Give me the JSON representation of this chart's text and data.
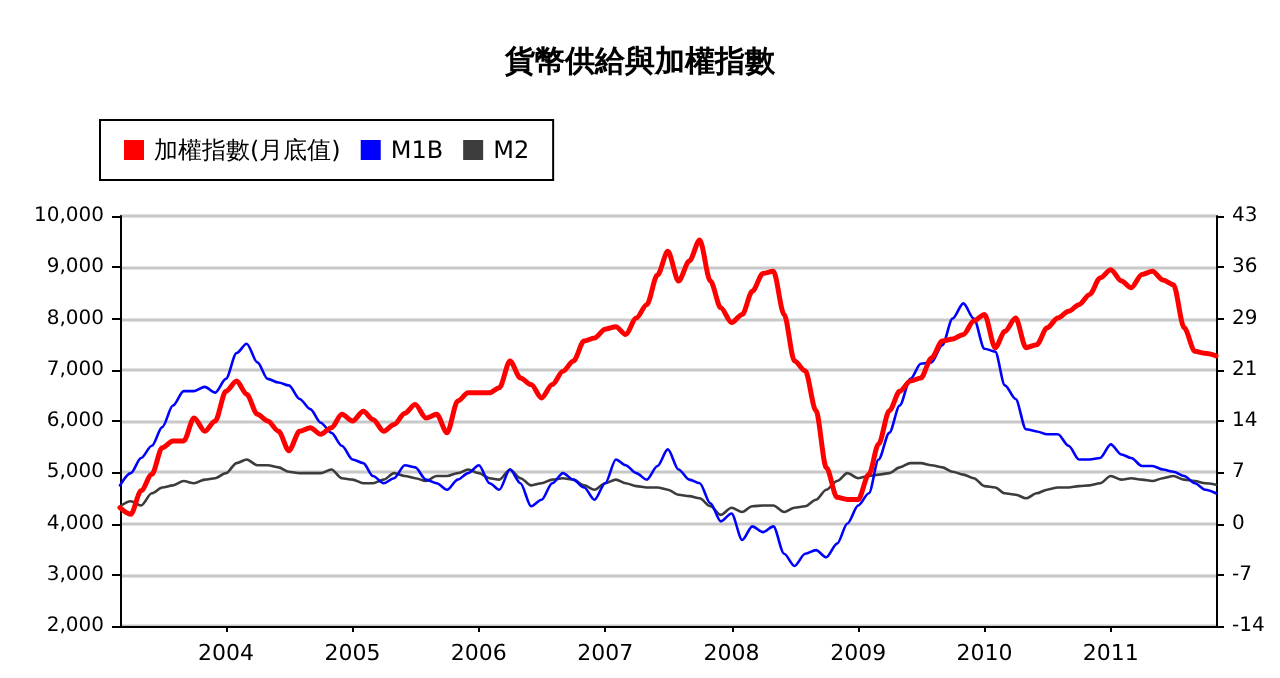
{
  "chart_data": {
    "type": "line",
    "title": "貨幣供給與加權指數",
    "legend": "top left",
    "grid": "y",
    "marker": "none",
    "line_style": "solid",
    "x": [
      "2003-03",
      "2003-04",
      "2003-05",
      "2003-06",
      "2003-07",
      "2003-08",
      "2003-09",
      "2003-10",
      "2003-11",
      "2003-12",
      "2004-01",
      "2004-02",
      "2004-03",
      "2004-04",
      "2004-05",
      "2004-06",
      "2004-07",
      "2004-08",
      "2004-09",
      "2004-10",
      "2004-11",
      "2004-12",
      "2005-01",
      "2005-02",
      "2005-03",
      "2005-04",
      "2005-05",
      "2005-06",
      "2005-07",
      "2005-08",
      "2005-09",
      "2005-10",
      "2005-11",
      "2005-12",
      "2006-01",
      "2006-02",
      "2006-03",
      "2006-04",
      "2006-05",
      "2006-06",
      "2006-07",
      "2006-08",
      "2006-09",
      "2006-10",
      "2006-11",
      "2006-12",
      "2007-01",
      "2007-02",
      "2007-03",
      "2007-04",
      "2007-05",
      "2007-06",
      "2007-07",
      "2007-08",
      "2007-09",
      "2007-10",
      "2007-11",
      "2007-12",
      "2008-01",
      "2008-02",
      "2008-03",
      "2008-04",
      "2008-05",
      "2008-06",
      "2008-07",
      "2008-08",
      "2008-09",
      "2008-10",
      "2008-11",
      "2008-12",
      "2009-01",
      "2009-02",
      "2009-03",
      "2009-04",
      "2009-05",
      "2009-06",
      "2009-07",
      "2009-08",
      "2009-09",
      "2009-10",
      "2009-11",
      "2009-12",
      "2010-01",
      "2010-02",
      "2010-03",
      "2010-04",
      "2010-05",
      "2010-06",
      "2010-07",
      "2010-08",
      "2010-09",
      "2010-10",
      "2010-11",
      "2010-12",
      "2011-01",
      "2011-02",
      "2011-03",
      "2011-04",
      "2011-05",
      "2011-06",
      "2011-07",
      "2011-08",
      "2011-09",
      "2011-10",
      "2011-11"
    ],
    "xlim": [
      "2003-03",
      "2011-11"
    ],
    "xticks": [
      {
        "value": "2004",
        "label": "2004"
      },
      {
        "value": "2005",
        "label": "2005"
      },
      {
        "value": "2006",
        "label": "2006"
      },
      {
        "value": "2007",
        "label": "2007"
      },
      {
        "value": "2008",
        "label": "2008"
      },
      {
        "value": "2009",
        "label": "2009"
      },
      {
        "value": "2010",
        "label": "2010"
      },
      {
        "value": "2011",
        "label": "2011"
      }
    ],
    "ylim": [
      2000,
      10000
    ],
    "yticks": [
      {
        "value": 2000,
        "label": "2,000"
      },
      {
        "value": 3000,
        "label": "3,000"
      },
      {
        "value": 4000,
        "label": "4,000"
      },
      {
        "value": 5000,
        "label": "5,000"
      },
      {
        "value": 6000,
        "label": "6,000"
      },
      {
        "value": 7000,
        "label": "7,000"
      },
      {
        "value": 8000,
        "label": "8,000"
      },
      {
        "value": 9000,
        "label": "9,000"
      },
      {
        "value": 10000,
        "label": "10,000"
      }
    ],
    "y2lim": [
      -14.25,
      42.75
    ],
    "y2ticks": [
      {
        "value": -14.25,
        "label": "-14"
      },
      {
        "value": -7.125,
        "label": "-7"
      },
      0,
      {
        "value": 7.125,
        "label": "7"
      },
      {
        "value": 14.25,
        "label": "14"
      },
      {
        "value": 21.375,
        "label": "21"
      },
      {
        "value": 28.5,
        "label": "29"
      },
      {
        "value": 35.625,
        "label": "36"
      },
      {
        "value": 42.75,
        "label": "43"
      }
    ],
    "series": [
      {
        "name": "加權指數(月底值)",
        "color": "#ff0000",
        "values": [
          4310,
          4180,
          4640,
          4960,
          5480,
          5610,
          5610,
          6060,
          5800,
          6000,
          6580,
          6780,
          6520,
          6130,
          6000,
          5800,
          5420,
          5800,
          5870,
          5740,
          5870,
          6130,
          6000,
          6190,
          6030,
          5800,
          5930,
          6150,
          6320,
          6060,
          6130,
          5770,
          6390,
          6550,
          6550,
          6550,
          6650,
          7170,
          6840,
          6710,
          6450,
          6710,
          6970,
          7170,
          7560,
          7620,
          7790,
          7840,
          7690,
          8010,
          8270,
          8850,
          9310,
          8730,
          9120,
          9530,
          8730,
          8210,
          7920,
          8080,
          8530,
          8880,
          8920,
          8080,
          7170,
          6980,
          6200,
          5090,
          4510,
          4470,
          4470,
          4960,
          5550,
          6200,
          6580,
          6780,
          6840,
          7230,
          7560,
          7600,
          7690,
          7950,
          8080,
          7430,
          7750,
          8010,
          7430,
          7490,
          7820,
          8010,
          8140,
          8270,
          8470,
          8790,
          8950,
          8730,
          8600,
          8860,
          8920,
          8750,
          8660,
          7820,
          7360,
          7320,
          7270
        ]
      },
      {
        "name": "M1B",
        "color": "#0000ff",
        "axis": "y2",
        "values": [
          5.3,
          7.0,
          9.1,
          10.8,
          13.4,
          16.4,
          18.4,
          18.4,
          19.0,
          18.2,
          20.1,
          23.7,
          25.0,
          22.4,
          20.1,
          19.6,
          19.2,
          17.3,
          15.9,
          14.0,
          12.6,
          10.8,
          8.9,
          8.4,
          6.6,
          5.6,
          6.3,
          8.1,
          7.8,
          6.1,
          5.6,
          4.7,
          6.1,
          7.0,
          8.1,
          5.6,
          4.7,
          7.5,
          5.6,
          2.4,
          3.3,
          5.6,
          7.0,
          6.1,
          5.0,
          3.3,
          5.6,
          8.9,
          8.1,
          7.0,
          6.1,
          8.0,
          10.3,
          7.5,
          6.1,
          5.6,
          2.8,
          0.3,
          1.4,
          -2.3,
          -0.4,
          -1.2,
          -0.4,
          -4.2,
          -5.9,
          -4.2,
          -3.7,
          -4.7,
          -2.8,
          0.0,
          2.5,
          4.2,
          8.9,
          12.6,
          16.4,
          20.1,
          22.2,
          22.4,
          24.8,
          28.5,
          30.6,
          28.5,
          24.3,
          23.9,
          19.2,
          17.3,
          13.1,
          12.8,
          12.4,
          12.4,
          10.8,
          8.9,
          8.9,
          9.1,
          11.0,
          9.6,
          9.1,
          8.0,
          8.0,
          7.5,
          7.2,
          6.6,
          5.6,
          4.7,
          4.2
        ]
      },
      {
        "name": "M2",
        "color": "#3c3c3c",
        "axis": "y2",
        "values": [
          2.4,
          3.1,
          2.5,
          4.2,
          5.0,
          5.3,
          5.9,
          5.6,
          6.1,
          6.3,
          7.0,
          8.4,
          8.9,
          8.1,
          8.1,
          7.8,
          7.2,
          7.0,
          7.0,
          7.0,
          7.5,
          6.3,
          6.1,
          5.6,
          5.6,
          6.1,
          7.0,
          6.6,
          6.3,
          5.9,
          6.6,
          6.6,
          7.0,
          7.5,
          7.0,
          6.3,
          6.1,
          7.5,
          6.3,
          5.3,
          5.6,
          6.1,
          6.3,
          6.1,
          5.3,
          4.7,
          5.6,
          6.1,
          5.6,
          5.2,
          5.0,
          5.0,
          4.7,
          4.0,
          3.8,
          3.5,
          2.4,
          1.2,
          2.2,
          1.6,
          2.4,
          2.5,
          2.5,
          1.6,
          2.2,
          2.4,
          3.3,
          4.7,
          5.9,
          7.0,
          6.3,
          6.6,
          6.8,
          7.0,
          7.8,
          8.4,
          8.4,
          8.1,
          7.8,
          7.2,
          6.8,
          6.3,
          5.2,
          5.0,
          4.2,
          4.0,
          3.5,
          4.2,
          4.7,
          5.0,
          5.0,
          5.2,
          5.3,
          5.6,
          6.6,
          6.1,
          6.3,
          6.1,
          5.9,
          6.3,
          6.6,
          6.1,
          5.9,
          5.6,
          5.4
        ]
      }
    ]
  }
}
